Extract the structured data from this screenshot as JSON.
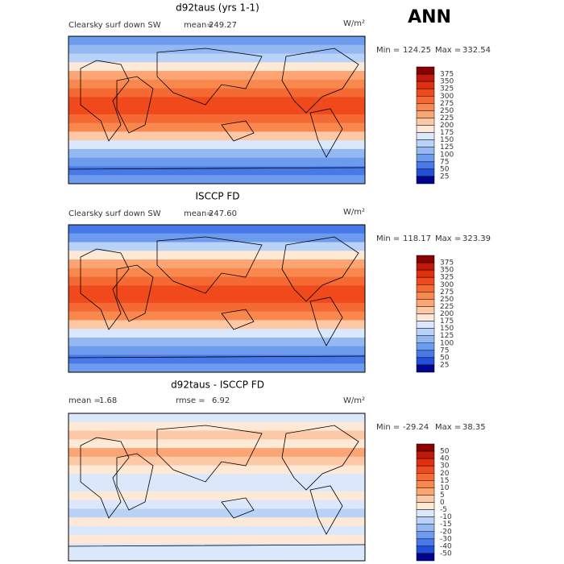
{
  "title": "ANN",
  "panels": [
    {
      "title": "d92taus (yrs 1-1)",
      "left_label": "Clearsky surf down SW",
      "stat1_label": "mean=",
      "stat1_value": "249.27",
      "units": "W/m²",
      "min_label": "Min =",
      "min": "124.25",
      "max_label": "Max =",
      "max": "332.54",
      "colorbar": {
        "labels": [
          "375",
          "350",
          "325",
          "300",
          "275",
          "250",
          "225",
          "200",
          "175",
          "150",
          "125",
          "100",
          "75",
          "50",
          "25"
        ],
        "colors": [
          "#8b0000",
          "#c0180a",
          "#e0300f",
          "#f04a1c",
          "#f56a34",
          "#f8884e",
          "#fba574",
          "#fdc8a6",
          "#fee8d6",
          "#dbe8fb",
          "#b9d2f7",
          "#94b8f2",
          "#6d9bee",
          "#4779e8",
          "#2250da",
          "#00048f"
        ]
      }
    },
    {
      "title": "ISCCP FD",
      "left_label": "Clearsky surf down SW",
      "stat1_label": "mean=",
      "stat1_value": "247.60",
      "units": "W/m²",
      "min_label": "Min =",
      "min": "118.17",
      "max_label": "Max =",
      "max": "323.39",
      "colorbar": {
        "labels": [
          "375",
          "350",
          "325",
          "300",
          "275",
          "250",
          "225",
          "200",
          "175",
          "150",
          "125",
          "100",
          "75",
          "50",
          "25"
        ],
        "colors": [
          "#8b0000",
          "#c0180a",
          "#e0300f",
          "#f04a1c",
          "#f56a34",
          "#f8884e",
          "#fba574",
          "#fdc8a6",
          "#fee8d6",
          "#dbe8fb",
          "#b9d2f7",
          "#94b8f2",
          "#6d9bee",
          "#4779e8",
          "#2250da",
          "#00048f"
        ]
      }
    },
    {
      "title": "d92taus - ISCCP FD",
      "stat1_label": "mean =",
      "stat1_value": "1.68",
      "stat2_label": "rmse =",
      "stat2_value": "6.92",
      "units": "W/m²",
      "min_label": "Min =",
      "min": "-29.24",
      "max_label": "Max =",
      "max": "38.35",
      "colorbar": {
        "labels": [
          "50",
          "40",
          "30",
          "20",
          "15",
          "10",
          "5",
          "0",
          "-5",
          "-10",
          "-15",
          "-20",
          "-30",
          "-40",
          "-50"
        ],
        "colors": [
          "#8b0000",
          "#c0180a",
          "#e0300f",
          "#f04a1c",
          "#f56a34",
          "#f8884e",
          "#fba574",
          "#fdc8a6",
          "#fee8d6",
          "#dbe8fb",
          "#b9d2f7",
          "#94b8f2",
          "#6d9bee",
          "#4779e8",
          "#2250da",
          "#00048f"
        ]
      }
    }
  ]
}
